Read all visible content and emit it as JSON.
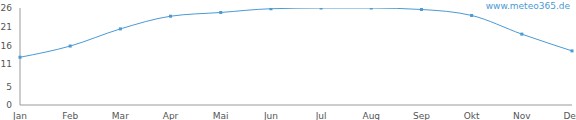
{
  "chart_data": {
    "type": "line",
    "annotation": "www.meteo365.de",
    "categories": [
      "Jan",
      "Feb",
      "Mar",
      "Apr",
      "Mai",
      "Jun",
      "Jul",
      "Aug",
      "Sep",
      "Okt",
      "Nov",
      "Dez"
    ],
    "values": [
      12.8,
      15.8,
      20.4,
      23.8,
      24.8,
      25.8,
      26,
      26,
      25.6,
      24,
      19,
      14.5
    ],
    "color": "#4a9ad4",
    "marker": "square",
    "ylim": [
      0,
      26
    ],
    "yticks": [
      0,
      5,
      11,
      16,
      21,
      26
    ],
    "grid": false
  }
}
